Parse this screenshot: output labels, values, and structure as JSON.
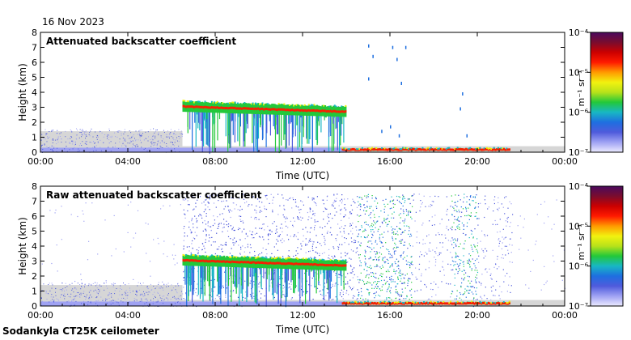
{
  "date": "16 Nov 2023",
  "footer": "Sodankyla CT25K ceilometer",
  "colorbar": {
    "unit": "m⁻¹ sr⁻¹",
    "ticks": [
      "10⁻⁴",
      "10⁻⁵",
      "10⁻⁶",
      "10⁻⁷"
    ],
    "scale": "log",
    "range": [
      1e-07,
      0.0001
    ],
    "colors": [
      "#ecebff",
      "#9fa2f3",
      "#4f5bdc",
      "#1e6fe0",
      "#18b7c4",
      "#23c83a",
      "#b8e21a",
      "#f2f20f",
      "#ff9a00",
      "#ff1a00",
      "#cc0000",
      "#7a0c2e",
      "#4a0a5e"
    ]
  },
  "chart_data": [
    {
      "type": "heatmap",
      "title": "Attenuated backscatter coefficient",
      "xlabel": "Time (UTC)",
      "ylabel": "Height (km)",
      "x_ticks": [
        "00:00",
        "04:00",
        "08:00",
        "12:00",
        "16:00",
        "20:00",
        "00:00"
      ],
      "y_ticks": [
        "0",
        "1",
        "2",
        "3",
        "4",
        "5",
        "6",
        "7",
        "8"
      ],
      "xlim_hours": [
        0,
        24
      ],
      "ylim_km": [
        0,
        8
      ],
      "layers": [
        {
          "start_h": 6.5,
          "end_h": 14.0,
          "top_km": 3.4,
          "bottom_km": 2.7
        },
        {
          "start_h": 13.8,
          "end_h": 21.5,
          "top_km": 0.25,
          "bottom_km": 0.1
        }
      ]
    },
    {
      "type": "heatmap",
      "title": "Raw attenuated backscatter coefficient",
      "xlabel": "Time (UTC)",
      "ylabel": "Height (km)",
      "x_ticks": [
        "00:00",
        "04:00",
        "08:00",
        "12:00",
        "16:00",
        "20:00",
        "00:00"
      ],
      "y_ticks": [
        "0",
        "1",
        "2",
        "3",
        "4",
        "5",
        "6",
        "7",
        "8"
      ],
      "xlim_hours": [
        0,
        24
      ],
      "ylim_km": [
        0,
        8
      ],
      "layers": [
        {
          "start_h": 6.5,
          "end_h": 14.0,
          "top_km": 3.4,
          "bottom_km": 2.7
        },
        {
          "start_h": 13.8,
          "end_h": 21.5,
          "top_km": 0.25,
          "bottom_km": 0.1
        }
      ]
    }
  ]
}
